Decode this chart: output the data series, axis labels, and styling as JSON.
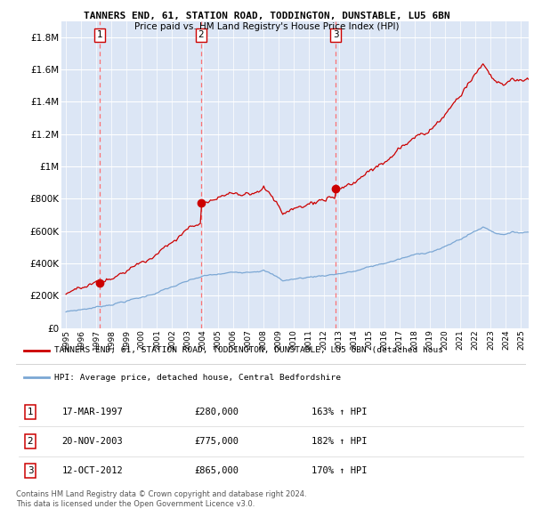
{
  "title_line1": "TANNERS END, 61, STATION ROAD, TODDINGTON, DUNSTABLE, LU5 6BN",
  "title_line2": "Price paid vs. HM Land Registry's House Price Index (HPI)",
  "ylim": [
    0,
    1900000
  ],
  "yticks": [
    0,
    200000,
    400000,
    600000,
    800000,
    1000000,
    1200000,
    1400000,
    1600000,
    1800000
  ],
  "ytick_labels": [
    "£0",
    "£200K",
    "£400K",
    "£600K",
    "£800K",
    "£1M",
    "£1.2M",
    "£1.4M",
    "£1.6M",
    "£1.8M"
  ],
  "xlim_start": 1994.7,
  "xlim_end": 2025.5,
  "bg_color": "#dce6f5",
  "grid_color": "#ffffff",
  "red_line_color": "#cc0000",
  "blue_line_color": "#7ba7d4",
  "dashed_color": "#ff6666",
  "purchase_dates": [
    1997.21,
    2003.9,
    2012.79
  ],
  "purchase_prices": [
    280000,
    775000,
    865000
  ],
  "purchase_labels": [
    "1",
    "2",
    "3"
  ],
  "purchase_date_strs": [
    "17-MAR-1997",
    "20-NOV-2003",
    "12-OCT-2012"
  ],
  "purchase_price_strs": [
    "£280,000",
    "£775,000",
    "£865,000"
  ],
  "purchase_hpi_strs": [
    "163% ↑ HPI",
    "182% ↑ HPI",
    "170% ↑ HPI"
  ],
  "legend_line1": "TANNERS END, 61, STATION ROAD, TODDINGTON, DUNSTABLE, LU5 6BN (detached hous",
  "legend_line2": "HPI: Average price, detached house, Central Bedfordshire",
  "footer_line1": "Contains HM Land Registry data © Crown copyright and database right 2024.",
  "footer_line2": "This data is licensed under the Open Government Licence v3.0."
}
